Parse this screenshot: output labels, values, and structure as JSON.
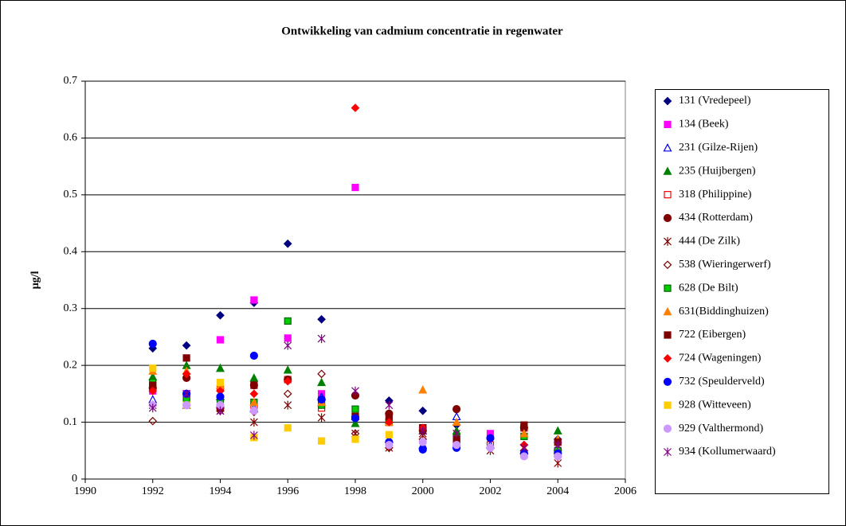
{
  "chart_data": {
    "type": "scatter",
    "title": "Ontwikkeling van cadmium concentratie in regenwater",
    "y_label": "µg/l",
    "x": [
      1992,
      1993,
      1994,
      1995,
      1996,
      1997,
      1998,
      1999,
      2000,
      2001,
      2002,
      2003,
      2004
    ],
    "xlim": [
      1990,
      2006
    ],
    "xticks": [
      1990,
      1992,
      1994,
      1996,
      1998,
      2000,
      2002,
      2004,
      2006
    ],
    "ylim": [
      0,
      0.7
    ],
    "yticks": [
      0,
      0.1,
      0.2,
      0.3,
      0.4,
      0.5,
      0.6,
      0.7
    ],
    "grid": true,
    "legend": "right",
    "series": [
      {
        "name": "131  (Vredepeel)",
        "color": "#000080",
        "marker": "diamond",
        "filled": true,
        "values": [
          0.23,
          0.235,
          0.288,
          0.31,
          0.414,
          0.281,
          0.11,
          0.138,
          0.12,
          0.095,
          null,
          0.06,
          0.07
        ]
      },
      {
        "name": "134  (Beek)",
        "color": "#ff00ff",
        "marker": "square",
        "filled": true,
        "values": [
          0.155,
          0.15,
          0.245,
          0.315,
          0.248,
          0.15,
          0.513,
          0.1,
          0.09,
          0.06,
          0.08,
          0.09,
          0.065
        ]
      },
      {
        "name": "231  (Gilze-Rijen)",
        "color": "#0000ff",
        "marker": "triangle",
        "filled": false,
        "values": [
          0.14,
          0.13,
          0.145,
          0.125,
          null,
          0.145,
          0.11,
          0.07,
          0.06,
          0.11,
          0.06,
          0.05,
          0.07
        ]
      },
      {
        "name": "235  (Huijbergen)",
        "color": "#008000",
        "marker": "triangle",
        "filled": true,
        "values": [
          0.18,
          0.2,
          0.195,
          0.178,
          0.192,
          0.17,
          0.098,
          0.105,
          0.085,
          0.085,
          null,
          0.08,
          0.085
        ]
      },
      {
        "name": "318  (Philippine)",
        "color": "#ff0000",
        "marker": "square",
        "filled": false,
        "values": [
          0.16,
          0.145,
          0.16,
          0.13,
          0.175,
          0.125,
          0.11,
          0.1,
          0.09,
          0.065,
          0.06,
          0.09,
          0.045
        ]
      },
      {
        "name": "434  (Rotterdam)",
        "color": "#800000",
        "marker": "circle",
        "filled": true,
        "values": [
          0.16,
          0.178,
          0.125,
          0.165,
          0.175,
          0.14,
          0.147,
          0.115,
          0.085,
          0.123,
          null,
          0.09,
          0.05
        ]
      },
      {
        "name": "444  (De Zilk)",
        "color": "#800000",
        "marker": "asterisk",
        "filled": false,
        "values": [
          0.13,
          0.145,
          0.12,
          0.1,
          0.13,
          0.108,
          0.08,
          0.055,
          0.08,
          0.07,
          0.05,
          0.055,
          0.028
        ]
      },
      {
        "name": "538  (Wieringerwerf)",
        "color": "#800000",
        "marker": "diamond",
        "filled": false,
        "values": [
          0.102,
          0.13,
          0.12,
          0.118,
          0.15,
          0.185,
          0.08,
          0.055,
          0.07,
          0.06,
          0.055,
          0.05,
          0.04
        ]
      },
      {
        "name": "628  (De Bilt)",
        "color": "#00cc00",
        "edgecolor": "#006600",
        "marker": "square",
        "filled": true,
        "values": [
          0.17,
          0.14,
          0.14,
          0.135,
          0.278,
          0.13,
          0.123,
          0.1,
          0.09,
          0.073,
          null,
          0.075,
          0.05
        ]
      },
      {
        "name": "631(Biddinghuizen)",
        "color": "#ff8000",
        "marker": "triangle",
        "filled": true,
        "values": [
          0.19,
          0.19,
          0.165,
          0.135,
          null,
          0.135,
          0.11,
          0.1,
          0.157,
          0.1,
          null,
          0.08,
          0.07
        ]
      },
      {
        "name": "722  (Eibergen)",
        "color": "#800000",
        "marker": "square",
        "filled": true,
        "values": [
          0.165,
          0.213,
          0.125,
          0.165,
          null,
          null,
          0.11,
          0.11,
          0.09,
          0.07,
          null,
          0.095,
          0.065
        ]
      },
      {
        "name": "724  (Wageningen)",
        "color": "#ff0000",
        "marker": "diamond",
        "filled": true,
        "values": [
          0.155,
          0.185,
          0.155,
          0.15,
          0.172,
          null,
          0.653,
          0.1,
          0.09,
          null,
          null,
          0.06,
          0.04
        ]
      },
      {
        "name": "732  (Speulderveld)",
        "color": "#0000ff",
        "marker": "circle",
        "filled": true,
        "values": [
          0.238,
          0.15,
          0.145,
          0.217,
          null,
          0.14,
          0.107,
          0.065,
          0.052,
          0.055,
          0.072,
          0.045,
          0.045
        ]
      },
      {
        "name": "928  (Witteveen)",
        "color": "#ffcc00",
        "marker": "square",
        "filled": true,
        "values": [
          0.195,
          0.13,
          0.17,
          0.073,
          0.09,
          0.067,
          0.07,
          0.078,
          null,
          null,
          null,
          null,
          null
        ]
      },
      {
        "name": "929  (Valthermond)",
        "color": "#cc99ff",
        "marker": "circle",
        "filled": true,
        "values": [
          0.13,
          0.13,
          0.13,
          0.12,
          null,
          null,
          null,
          0.06,
          0.065,
          0.06,
          0.055,
          0.04,
          0.04
        ]
      },
      {
        "name": "934  (Kollumerwaard)",
        "color": "#800080",
        "marker": "asterisk",
        "filled": false,
        "values": [
          0.125,
          0.15,
          0.12,
          0.077,
          0.235,
          0.247,
          0.155,
          0.13,
          0.085,
          0.08,
          null,
          0.055,
          0.06
        ]
      }
    ]
  }
}
